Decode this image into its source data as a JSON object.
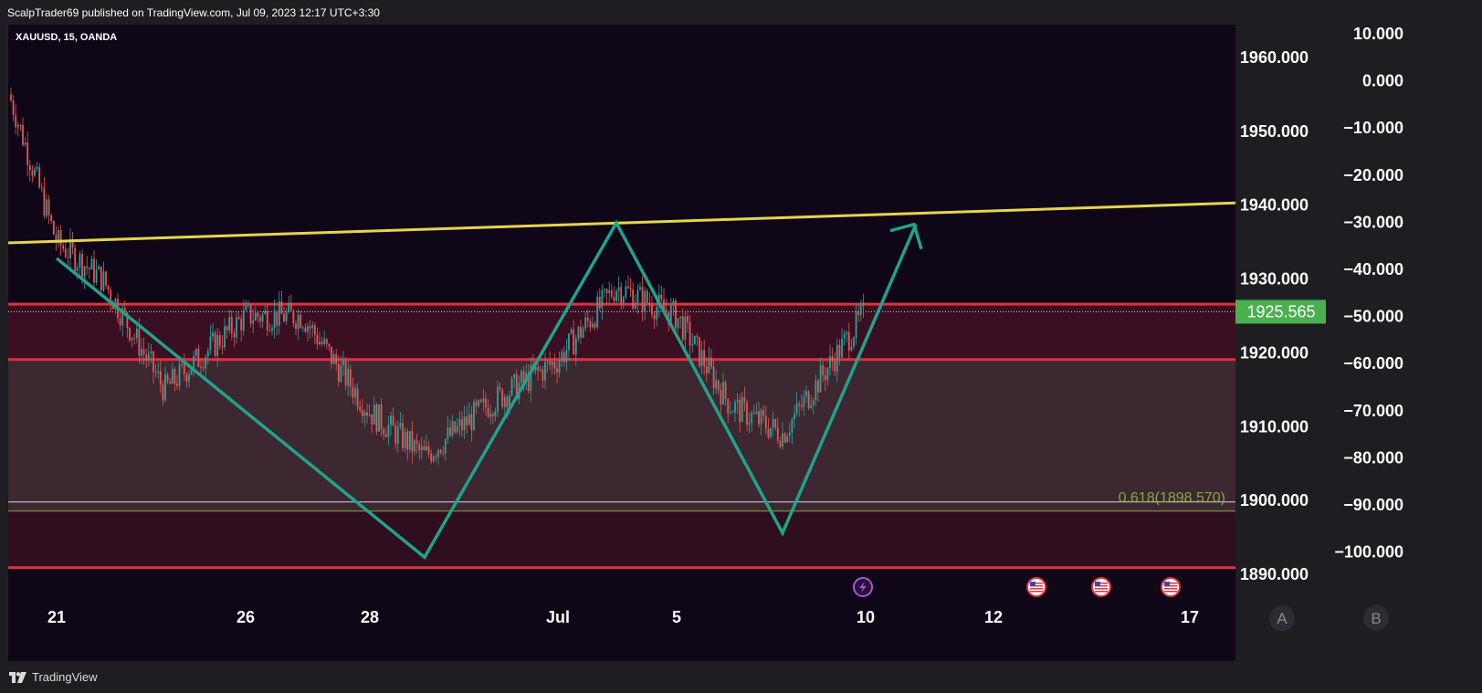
{
  "header": {
    "publish_line": "ScalpTrader69 published on TradingView.com, Jul 09, 2023 12:17 UTC+3:30"
  },
  "symbol": {
    "label": "XAUUSD, 15, OANDA"
  },
  "footer": {
    "brand": "TradingView"
  },
  "colors": {
    "background": "#0f0618",
    "resistance_line": "#e8d44d",
    "zone_line": "#e0313f",
    "pattern": "#1fa38c",
    "price_badge": "#4caf50",
    "fib": "#7faa3f",
    "candle_up": "#26a69a",
    "candle_down": "#ef5350"
  },
  "chart_data": {
    "type": "line",
    "title": "XAUUSD, 15, OANDA",
    "series": [
      {
        "name": "XAUUSD 15m close (approx.)",
        "x": [
          "Jun 20",
          "Jun 21",
          "Jun 22",
          "Jun 23",
          "Jun 26",
          "Jun 27",
          "Jun 28",
          "Jun 29",
          "Jun 30",
          "Jul 3",
          "Jul 4",
          "Jul 5",
          "Jul 6",
          "Jul 7",
          "Jul 10"
        ],
        "values": [
          1955,
          1935,
          1930,
          1915,
          1925,
          1925,
          1912,
          1906,
          1913,
          1919,
          1929,
          1925,
          1913,
          1909,
          1925.565
        ]
      }
    ],
    "last_price": "1925.565",
    "ylim": [
      1887,
      1966
    ],
    "right_axis_ticks": [
      "1960.000",
      "1950.000",
      "1940.000",
      "1930.000",
      "1920.000",
      "1910.000",
      "1900.000",
      "1890.000"
    ],
    "right_axis_values": [
      1960,
      1950,
      1940,
      1930,
      1920,
      1910,
      1900,
      1890
    ],
    "secondary_axis_ticks": [
      "10.000",
      "0.000",
      "−10.000",
      "−20.000",
      "−30.000",
      "−40.000",
      "−50.000",
      "−60.000",
      "−70.000",
      "−80.000",
      "−90.000",
      "−100.000"
    ],
    "x_tick_labels": [
      "21",
      "26",
      "28",
      "Jul",
      "5",
      "10",
      "12",
      "17"
    ],
    "zone_levels": [
      1926.6,
      1919.1,
      1890.9
    ],
    "fib_label": "0.618(1898.570)",
    "fib_level": 1898.57,
    "white_level": 1899.8,
    "resistance_line": [
      {
        "date": "Jun 20",
        "price": 1934.9
      },
      {
        "date": "Jul 17",
        "price": 1940.3
      }
    ],
    "pattern_path": [
      {
        "date": "Jun 21",
        "price": 1932.8
      },
      {
        "date": "Jun 29",
        "price": 1892.3
      },
      {
        "date": "Jul 4",
        "price": 1937.6
      },
      {
        "date": "Jul 7",
        "price": 1895.6
      },
      {
        "date": "Jul 11",
        "price": 1937.4
      }
    ],
    "arrow_head_date": "Jul 11",
    "axis_buttons": [
      "A",
      "B"
    ],
    "event_icons": [
      "bolt-icon",
      "us-flag-icon",
      "us-flag-icon",
      "us-flag-icon"
    ]
  }
}
